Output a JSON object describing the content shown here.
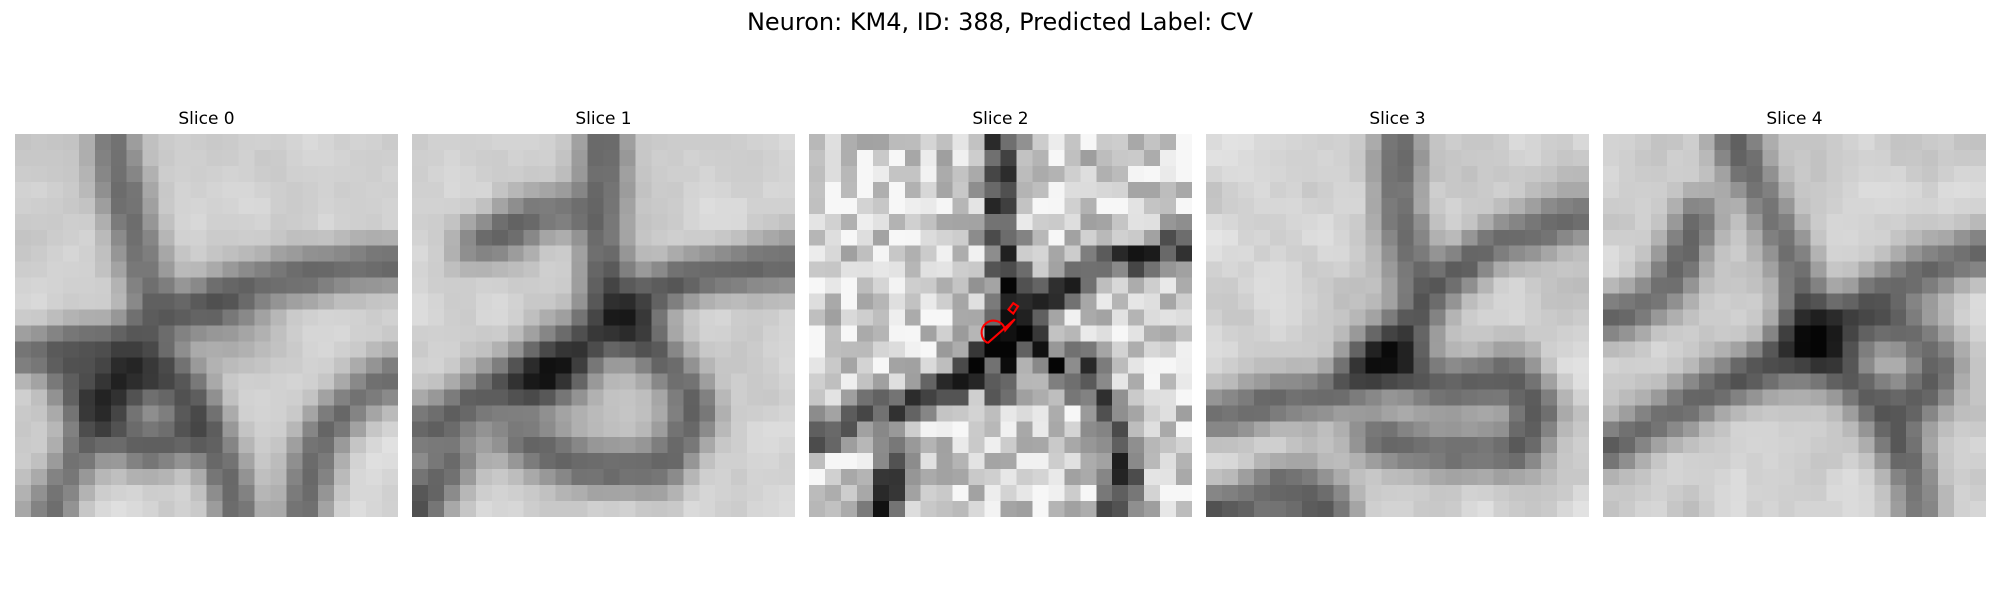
{
  "figure": {
    "suptitle": "Neuron: KM4, ID: 388, Predicted Label: CV"
  },
  "panels": [
    {
      "title": "Slice 0",
      "colormap": "gray"
    },
    {
      "title": "Slice 1",
      "colormap": "gray"
    },
    {
      "title": "Slice 2",
      "colormap": "gray",
      "annotation_color": "#ff0000"
    },
    {
      "title": "Slice 3",
      "colormap": "gray"
    },
    {
      "title": "Slice 4",
      "colormap": "gray"
    }
  ]
}
